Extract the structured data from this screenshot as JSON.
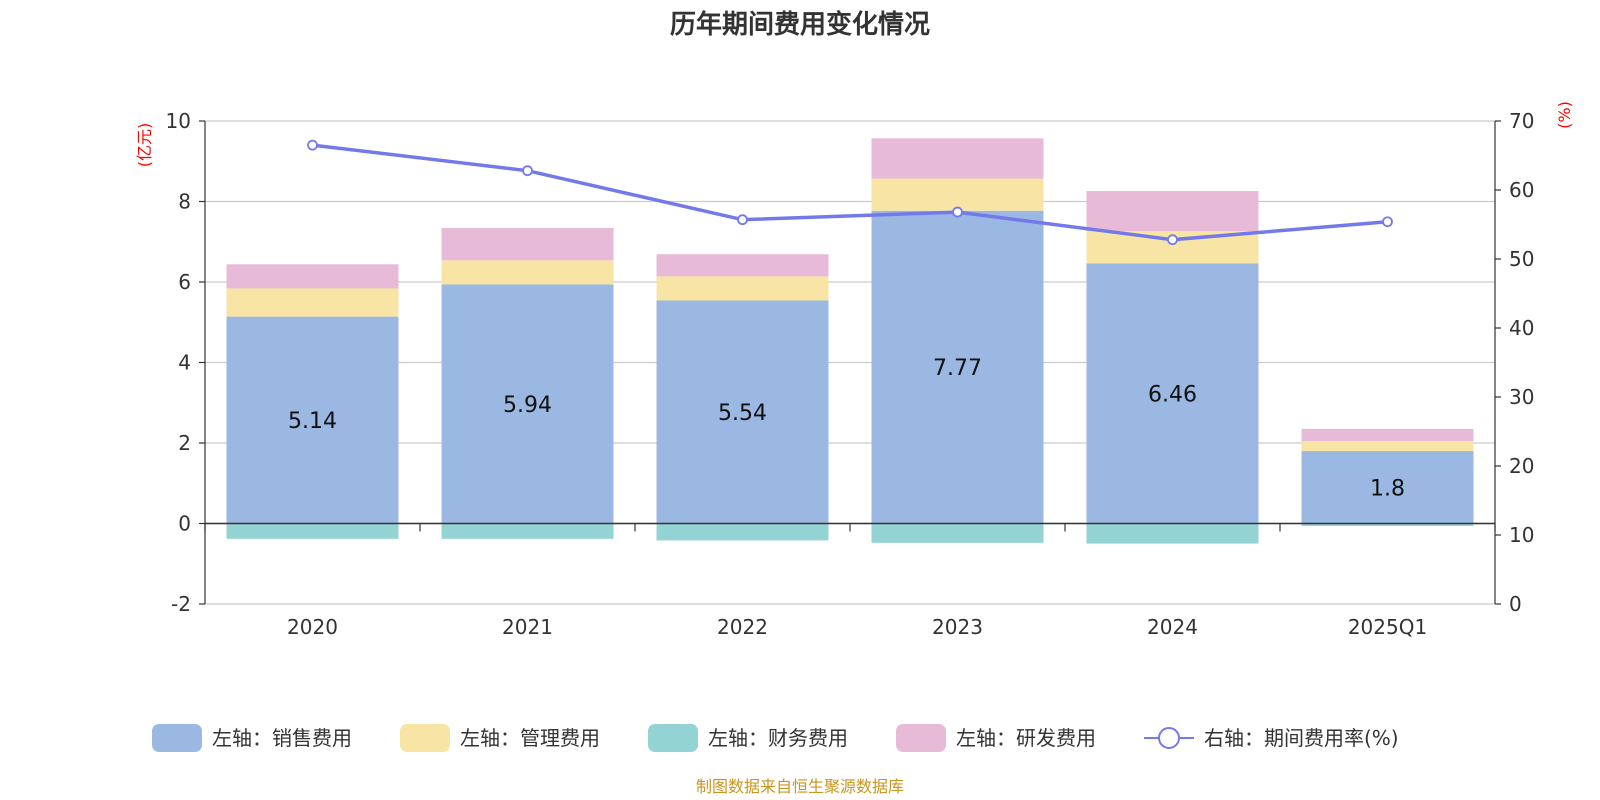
{
  "chart_data": {
    "type": "bar",
    "title": "历年期间费用变化情况",
    "categories": [
      "2020",
      "2021",
      "2022",
      "2023",
      "2024",
      "2025Q1"
    ],
    "left_axis": {
      "unit": "(亿元)",
      "ylim": [
        -2,
        10
      ],
      "ticks": [
        "-2",
        "0",
        "2",
        "4",
        "6",
        "8",
        "10"
      ]
    },
    "right_axis": {
      "unit": "(%)",
      "ylim": [
        0,
        70
      ],
      "ticks": [
        "0",
        "10",
        "20",
        "30",
        "40",
        "50",
        "60",
        "70"
      ]
    },
    "series": [
      {
        "name": "左轴：销售费用",
        "axis": "left",
        "color": "#9bb8e3",
        "values": [
          5.14,
          5.94,
          5.54,
          7.77,
          6.46,
          1.8
        ],
        "labels": [
          "5.14",
          "5.94",
          "5.54",
          "7.77",
          "6.46",
          "1.8"
        ]
      },
      {
        "name": "左轴：管理费用",
        "axis": "left",
        "color": "#f8e5a6",
        "values": [
          0.7,
          0.6,
          0.6,
          0.8,
          0.8,
          0.25
        ]
      },
      {
        "name": "左轴：财务费用",
        "axis": "left",
        "color": "#94d3d4",
        "values": [
          -0.38,
          -0.38,
          -0.42,
          -0.48,
          -0.5,
          -0.06
        ]
      },
      {
        "name": "左轴：研发费用",
        "axis": "left",
        "color": "#e7bad8",
        "values": [
          0.6,
          0.8,
          0.55,
          1.0,
          1.0,
          0.3
        ]
      },
      {
        "name": "右轴：期间费用率(%)",
        "axis": "right",
        "type": "line",
        "color": "#7479ea",
        "values": [
          66.5,
          62.8,
          55.7,
          56.8,
          52.8,
          55.4
        ]
      }
    ],
    "legend": "bottom",
    "grid": true
  },
  "source": "制图数据来自恒生聚源数据库"
}
